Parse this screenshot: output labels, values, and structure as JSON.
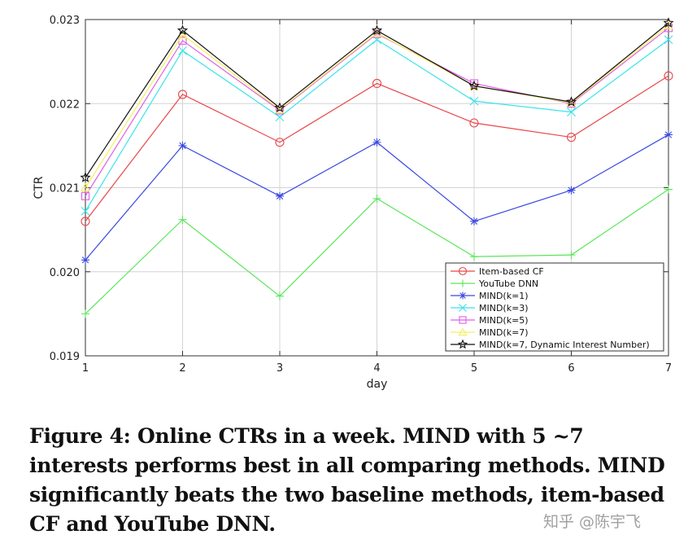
{
  "chart_data": {
    "type": "line",
    "xlabel": "day",
    "ylabel": "CTR",
    "x": [
      1,
      2,
      3,
      4,
      5,
      6,
      7
    ],
    "xlim": [
      1,
      7
    ],
    "ylim": [
      0.019,
      0.023
    ],
    "xticks": [
      "1",
      "2",
      "3",
      "4",
      "5",
      "6",
      "7"
    ],
    "yticks": [
      0.019,
      0.02,
      0.021,
      0.022,
      0.023
    ],
    "ytick_labels": [
      "0.019",
      "0.020",
      "0.021",
      "0.022",
      "0.023"
    ],
    "grid": true,
    "legend_position": "bottom-right",
    "series": [
      {
        "name": "Item-based CF",
        "color": "#e8474b",
        "marker": "circle",
        "values": [
          0.0206,
          0.02211,
          0.02154,
          0.02224,
          0.02177,
          0.0216,
          0.02233
        ]
      },
      {
        "name": "YouTube DNN",
        "color": "#5ae65a",
        "marker": "plus",
        "values": [
          0.0195,
          0.02062,
          0.01971,
          0.02087,
          0.02018,
          0.0202,
          0.02098
        ]
      },
      {
        "name": "MIND(k=1)",
        "color": "#3a49e0",
        "marker": "asterisk",
        "values": [
          0.02014,
          0.0215,
          0.0209,
          0.02154,
          0.0206,
          0.02097,
          0.02163
        ]
      },
      {
        "name": "MIND(k=3)",
        "color": "#39e4ec",
        "marker": "x",
        "values": [
          0.02072,
          0.02263,
          0.02184,
          0.02276,
          0.02203,
          0.0219,
          0.02276
        ]
      },
      {
        "name": "MIND(k=5)",
        "color": "#e15fe6",
        "marker": "square",
        "values": [
          0.0209,
          0.02275,
          0.02192,
          0.02283,
          0.02224,
          0.022,
          0.0229
        ]
      },
      {
        "name": "MIND(k=7)",
        "color": "#f3f05c",
        "marker": "triangle",
        "values": [
          0.021,
          0.02282,
          0.02193,
          0.02284,
          0.02221,
          0.02201,
          0.02293
        ]
      },
      {
        "name": "MIND(k=7, Dynamic Interest Number)",
        "color": "#111111",
        "marker": "star",
        "values": [
          0.02112,
          0.02287,
          0.02195,
          0.02287,
          0.02221,
          0.02202,
          0.02296
        ]
      }
    ]
  },
  "caption": "Figure 4: Online CTRs in a week. MIND with 5 ~7 interests performs best in all comparing methods. MIND significantly beats the two baseline methods, item-based CF and YouTube DNN.",
  "watermark": "知乎 @陈宇飞"
}
